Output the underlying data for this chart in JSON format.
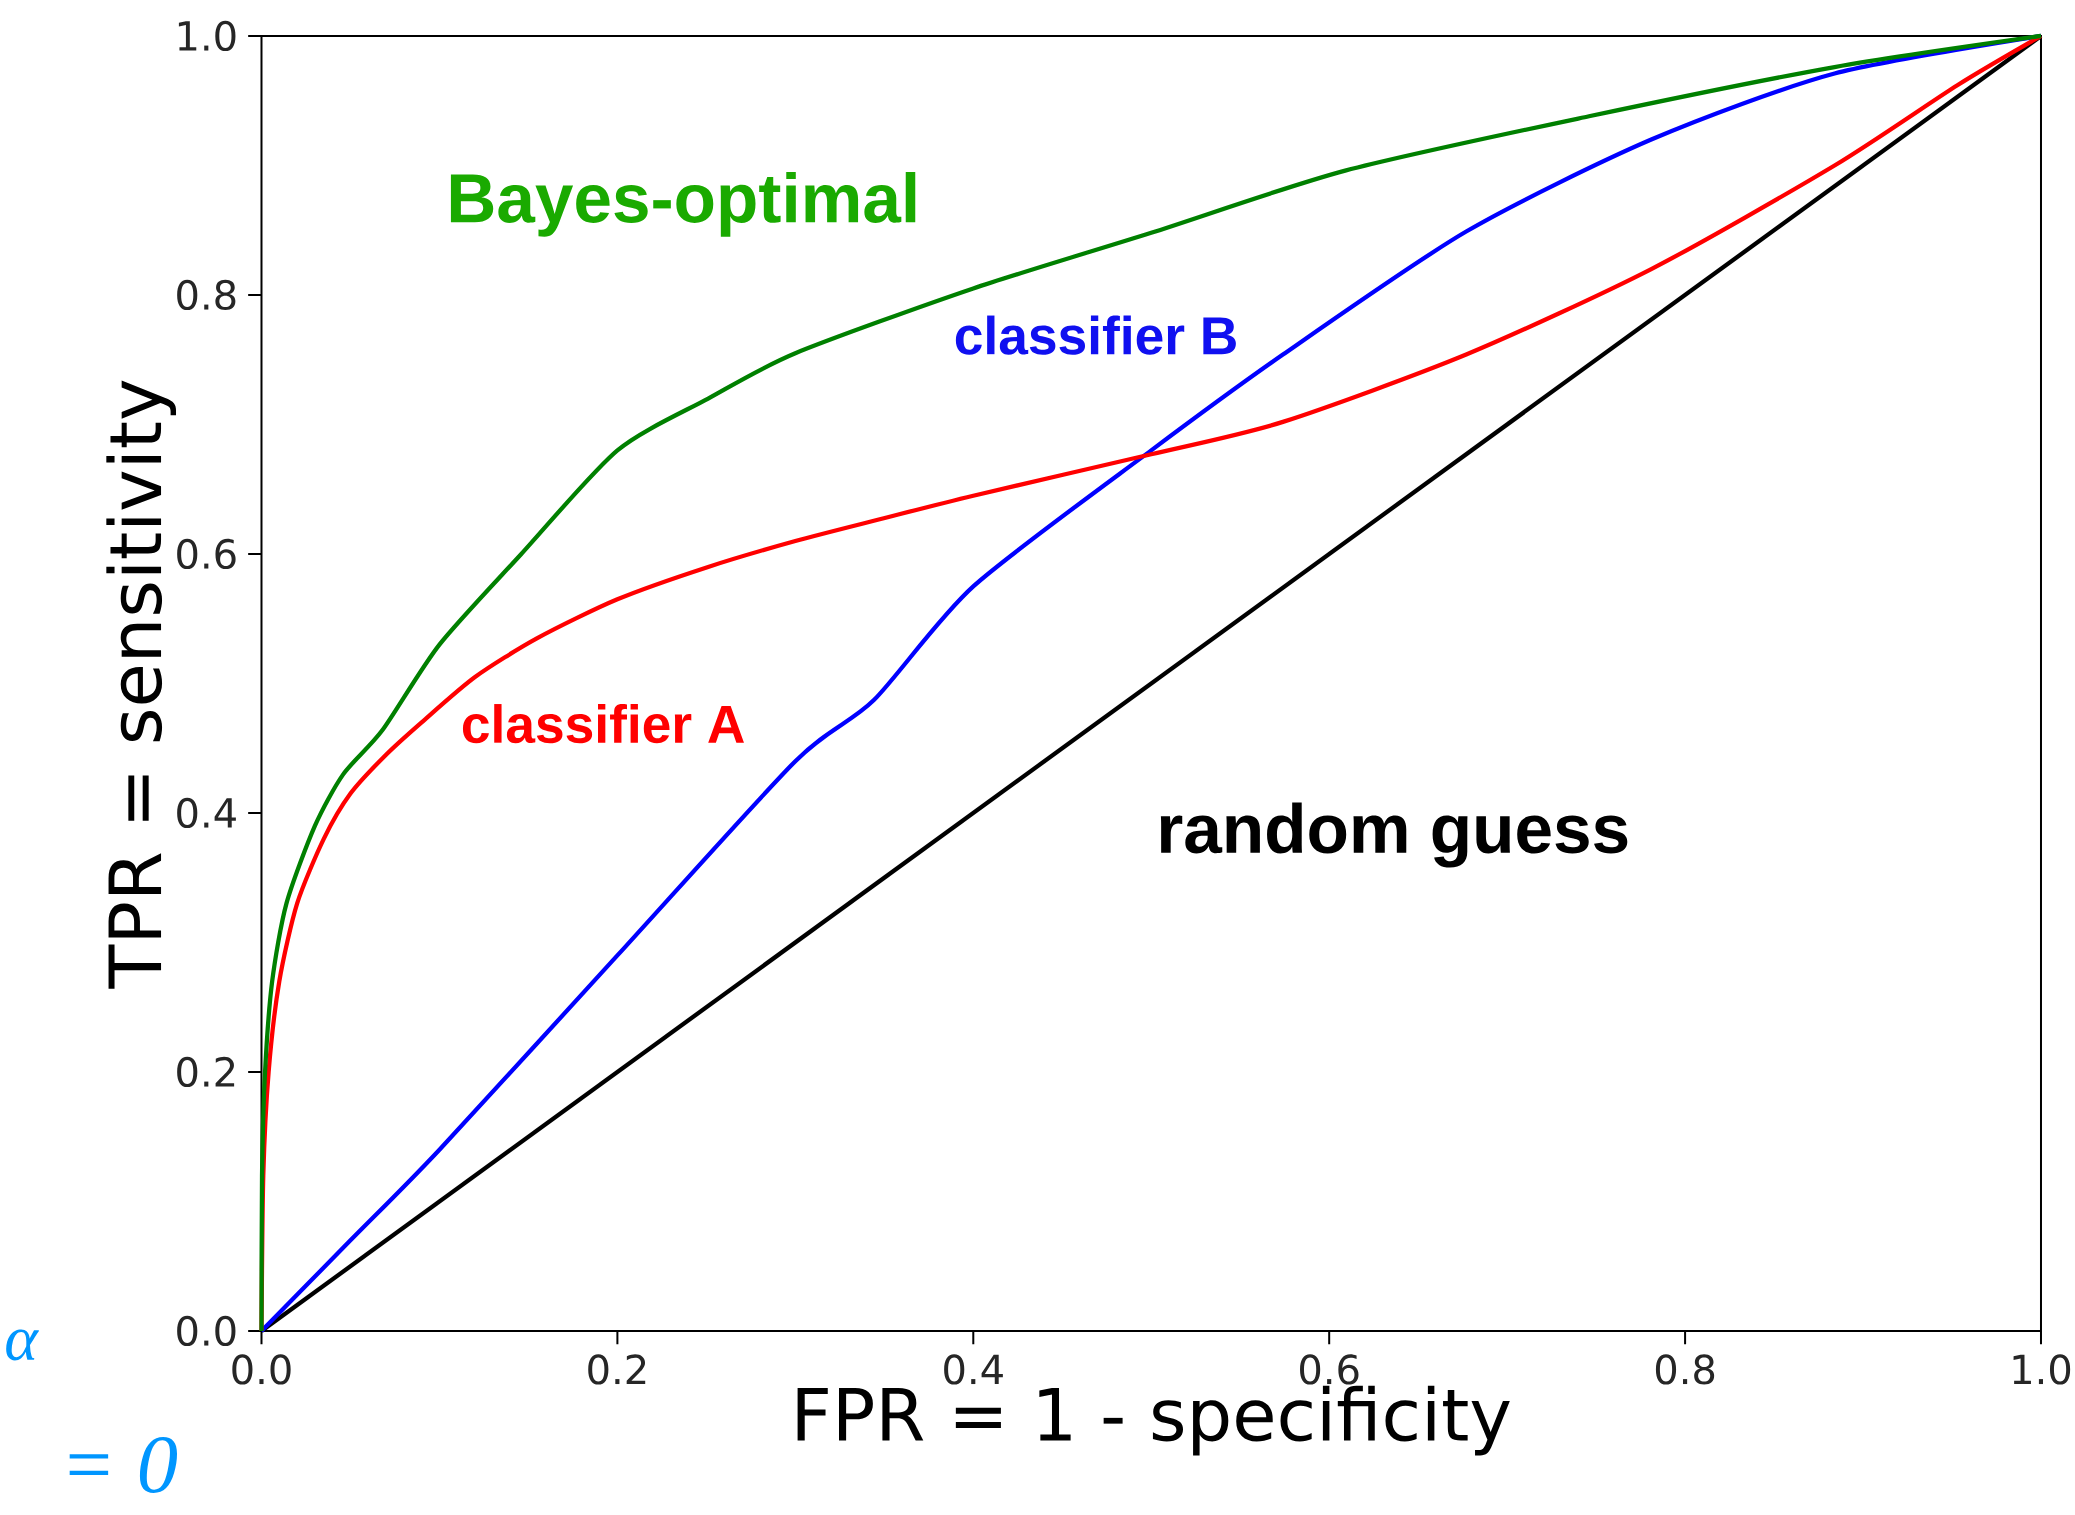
{
  "chart_data": {
    "type": "line",
    "xlabel": "FPR = 1 - specificity",
    "ylabel": "TPR = sensitivity",
    "xlim": [
      0,
      1
    ],
    "ylim": [
      0,
      1
    ],
    "xticks": [
      {
        "value": 0,
        "label": "0.0"
      },
      {
        "value": 0.2,
        "label": "0.2"
      },
      {
        "value": 0.4,
        "label": "0.4"
      },
      {
        "value": 0.6,
        "label": "0.6"
      },
      {
        "value": 0.8,
        "label": "0.8"
      },
      {
        "value": 1,
        "label": "1.0"
      }
    ],
    "yticks": [
      {
        "value": 0,
        "label": "0.0"
      },
      {
        "value": 0.2,
        "label": "0.2"
      },
      {
        "value": 0.4,
        "label": "0.4"
      },
      {
        "value": 0.6,
        "label": "0.6"
      },
      {
        "value": 0.8,
        "label": "0.8"
      },
      {
        "value": 1,
        "label": "1.0"
      }
    ],
    "line_style": "solid",
    "annotations": [
      "α",
      "= 0"
    ],
    "series": [
      {
        "name": "Bayes-optimal",
        "color": "#008000",
        "x": [
          0,
          0.0003,
          0.002,
          0.006,
          0.014,
          0.03,
          0.046,
          0.068,
          0.1,
          0.146,
          0.2,
          0.251,
          0.3,
          0.4,
          0.5,
          0.609,
          0.746,
          0.884,
          1
        ],
        "values": [
          0,
          0.12,
          0.2,
          0.27,
          0.33,
          0.39,
          0.43,
          0.464,
          0.53,
          0.6,
          0.68,
          0.72,
          0.755,
          0.805,
          0.848,
          0.896,
          0.938,
          0.976,
          1
        ]
      },
      {
        "name": "classifier A",
        "color": "#ff0000",
        "x": [
          0,
          0.001,
          0.004,
          0.01,
          0.02,
          0.035,
          0.05,
          0.07,
          0.09,
          0.12,
          0.155,
          0.2,
          0.251,
          0.3,
          0.348,
          0.4,
          0.5,
          0.574,
          0.677,
          0.781,
          0.884,
          0.953,
          1
        ],
        "values": [
          0,
          0.12,
          0.2,
          0.27,
          0.33,
          0.38,
          0.415,
          0.445,
          0.47,
          0.505,
          0.535,
          0.565,
          0.59,
          0.61,
          0.627,
          0.645,
          0.677,
          0.702,
          0.754,
          0.82,
          0.9,
          0.962,
          1
        ]
      },
      {
        "name": "classifier B",
        "color": "#0000ff",
        "x": [
          0,
          0.05,
          0.1,
          0.2,
          0.3,
          0.344,
          0.4,
          0.5,
          0.574,
          0.677,
          0.781,
          0.884,
          1
        ],
        "values": [
          0,
          0.07,
          0.14,
          0.29,
          0.44,
          0.487,
          0.575,
          0.68,
          0.754,
          0.849,
          0.92,
          0.971,
          1
        ]
      },
      {
        "name": "random guess",
        "color": "#000000",
        "x": [
          0,
          1
        ],
        "values": [
          0,
          1
        ]
      }
    ]
  }
}
